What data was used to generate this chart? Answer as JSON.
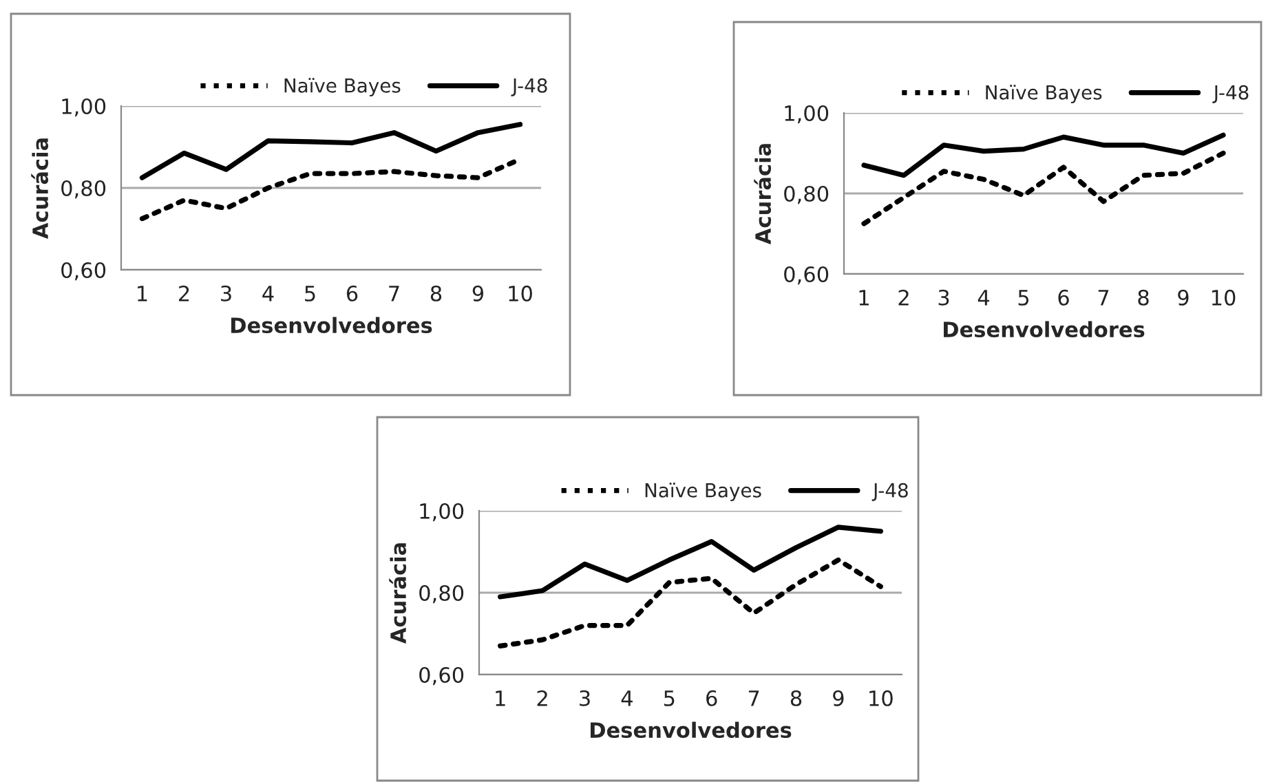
{
  "chart_data": [
    {
      "type": "line",
      "xlabel": "Desenvolvedores",
      "ylabel": "Acurácia",
      "categories": [
        "1",
        "2",
        "3",
        "4",
        "5",
        "6",
        "7",
        "8",
        "9",
        "10"
      ],
      "ylim": [
        0.6,
        1.0
      ],
      "yticks": [
        {
          "value": 0.6,
          "label": "0,60"
        },
        {
          "value": 0.8,
          "label": "0,80"
        },
        {
          "value": 1.0,
          "label": "1,00"
        }
      ],
      "grid": "y",
      "legend": "top right",
      "series": [
        {
          "name": "Naïve Bayes",
          "color": "#000000",
          "line_style": "dotted",
          "values": [
            0.725,
            0.77,
            0.75,
            0.8,
            0.835,
            0.835,
            0.84,
            0.83,
            0.825,
            0.87
          ]
        },
        {
          "name": "J-48",
          "color": "#000000",
          "line_style": "solid",
          "values": [
            0.825,
            0.885,
            0.845,
            0.915,
            0.913,
            0.91,
            0.935,
            0.89,
            0.935,
            0.955
          ]
        }
      ]
    },
    {
      "type": "line",
      "xlabel": "Desenvolvedores",
      "ylabel": "Acurácia",
      "categories": [
        "1",
        "2",
        "3",
        "4",
        "5",
        "6",
        "7",
        "8",
        "9",
        "10"
      ],
      "ylim": [
        0.6,
        1.0
      ],
      "yticks": [
        {
          "value": 0.6,
          "label": "0,60"
        },
        {
          "value": 0.8,
          "label": "0,80"
        },
        {
          "value": 1.0,
          "label": "1,00"
        }
      ],
      "grid": "y",
      "legend": "top right",
      "series": [
        {
          "name": "Naïve Bayes",
          "color": "#000000",
          "line_style": "dotted",
          "values": [
            0.725,
            0.79,
            0.855,
            0.835,
            0.795,
            0.865,
            0.78,
            0.845,
            0.85,
            0.9
          ]
        },
        {
          "name": "J-48",
          "color": "#000000",
          "line_style": "solid",
          "values": [
            0.87,
            0.845,
            0.92,
            0.905,
            0.91,
            0.94,
            0.92,
            0.92,
            0.9,
            0.945
          ]
        }
      ]
    },
    {
      "type": "line",
      "xlabel": "Desenvolvedores",
      "ylabel": "Acurácia",
      "categories": [
        "1",
        "2",
        "3",
        "4",
        "5",
        "6",
        "7",
        "8",
        "9",
        "10"
      ],
      "ylim": [
        0.6,
        1.0
      ],
      "yticks": [
        {
          "value": 0.6,
          "label": "0,60"
        },
        {
          "value": 0.8,
          "label": "0,80"
        },
        {
          "value": 1.0,
          "label": "1,00"
        }
      ],
      "grid": "y",
      "legend": "top right",
      "series": [
        {
          "name": "Naïve Bayes",
          "color": "#000000",
          "line_style": "dotted",
          "values": [
            0.67,
            0.685,
            0.72,
            0.72,
            0.825,
            0.835,
            0.75,
            0.82,
            0.88,
            0.815
          ]
        },
        {
          "name": "J-48",
          "color": "#000000",
          "line_style": "solid",
          "values": [
            0.79,
            0.805,
            0.87,
            0.83,
            0.88,
            0.925,
            0.855,
            0.91,
            0.96,
            0.95
          ]
        }
      ]
    }
  ]
}
